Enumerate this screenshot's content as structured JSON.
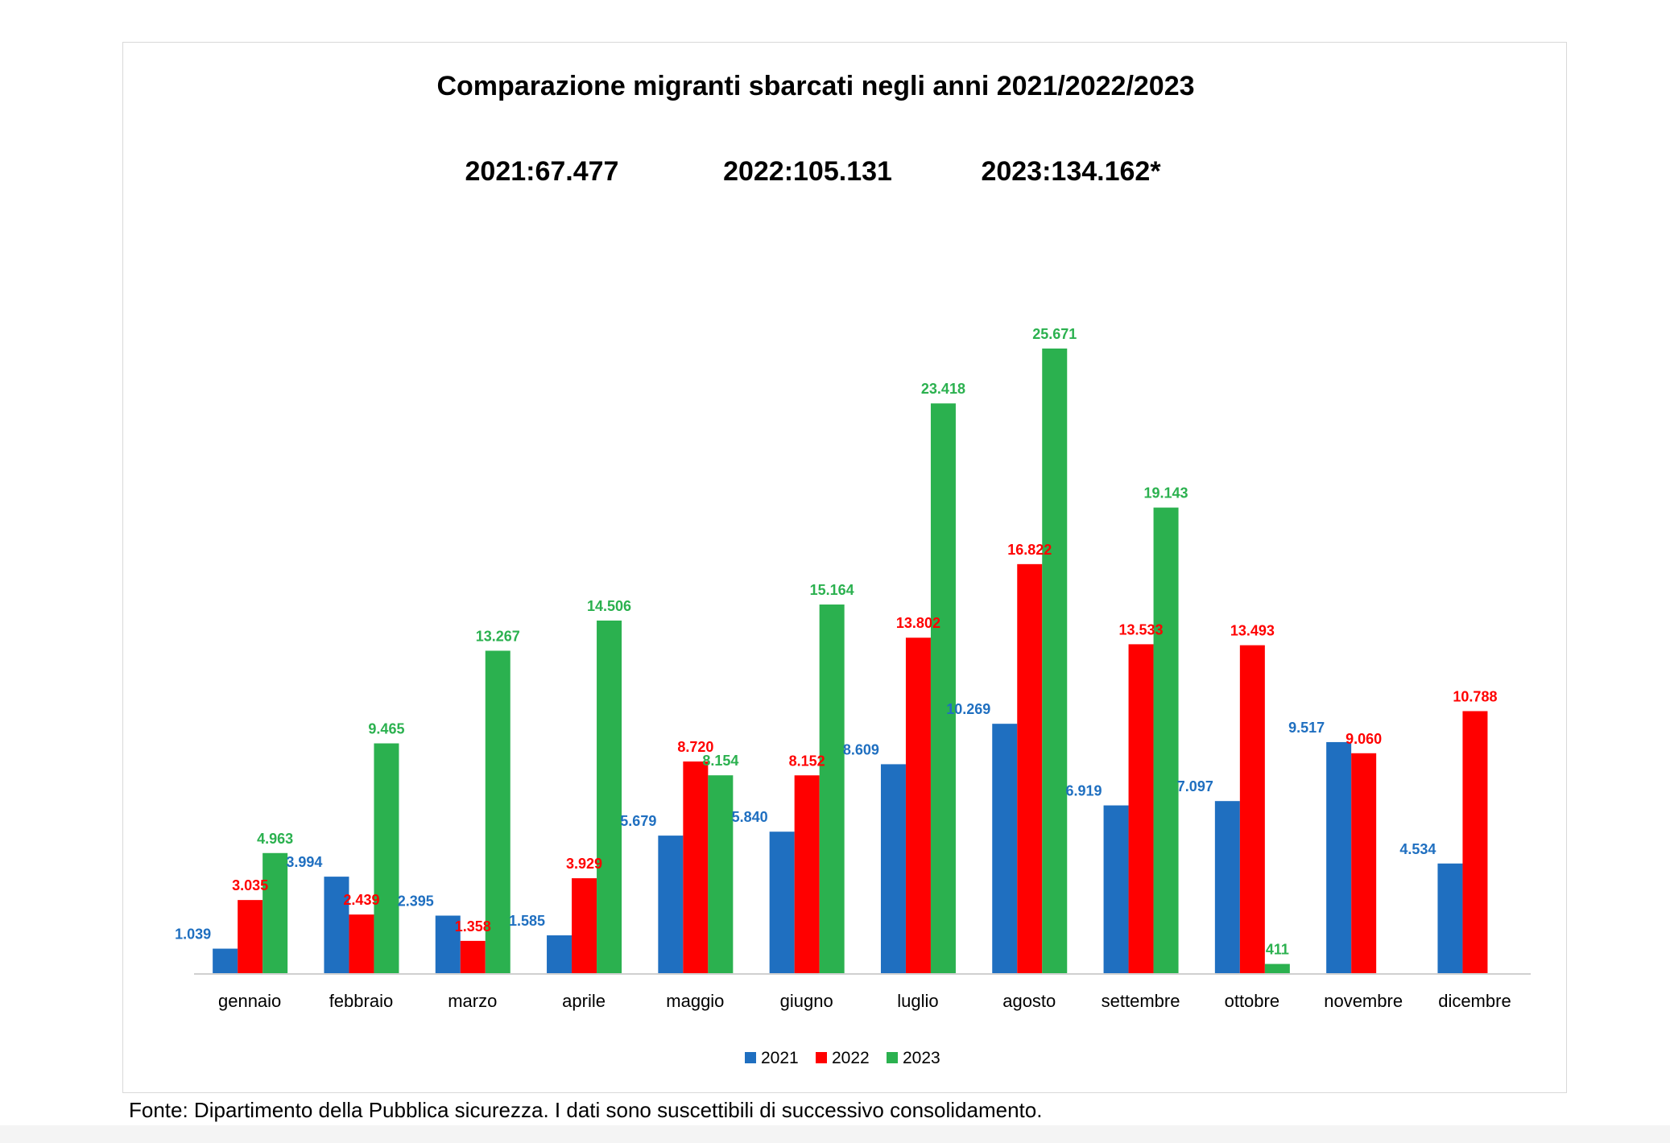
{
  "chart_data": {
    "type": "bar",
    "title": "Comparazione migranti sbarcati negli anni 2021/2022/2023",
    "subtitle_totals": [
      "2021:67.477",
      "2022:105.131",
      "2023:134.162*"
    ],
    "categories": [
      "gennaio",
      "febbraio",
      "marzo",
      "aprile",
      "maggio",
      "giugno",
      "luglio",
      "agosto",
      "settembre",
      "ottobre",
      "novembre",
      "dicembre"
    ],
    "series": [
      {
        "name": "2021",
        "color": "#1f6fc0",
        "values": [
          1039,
          3994,
          2395,
          1585,
          5679,
          5840,
          8609,
          10269,
          6919,
          7097,
          9517,
          4534
        ],
        "labels": [
          "1.039",
          "3.994",
          "2.395",
          "1.585",
          "5.679",
          "5.840",
          "8.609",
          "10.269",
          "6.919",
          "7.097",
          "9.517",
          "4.534"
        ]
      },
      {
        "name": "2022",
        "color": "#ff0000",
        "values": [
          3035,
          2439,
          1358,
          3929,
          8720,
          8152,
          13802,
          16822,
          13533,
          13493,
          9060,
          10788
        ],
        "labels": [
          "3.035",
          "2.439",
          "1.358",
          "3.929",
          "8.720",
          "8.152",
          "13.802",
          "16.822",
          "13.533",
          "13.493",
          "9.060",
          "10.788"
        ]
      },
      {
        "name": "2023",
        "color": "#2bb14f",
        "values": [
          4963,
          9465,
          13267,
          14506,
          8154,
          15164,
          23418,
          25671,
          19143,
          411,
          null,
          null
        ],
        "labels": [
          "4.963",
          "9.465",
          "13.267",
          "14.506",
          "8.154",
          "15.164",
          "23.418",
          "25.671",
          "19.143",
          "411",
          "",
          ""
        ]
      }
    ],
    "legend": {
      "position": "bottom",
      "entries": [
        "2021",
        "2022",
        "2023"
      ]
    },
    "ylim": [
      0,
      27000
    ],
    "grid": false
  },
  "source_note": "Fonte: Dipartimento della Pubblica sicurezza. I dati sono suscettibili di successivo consolidamento."
}
